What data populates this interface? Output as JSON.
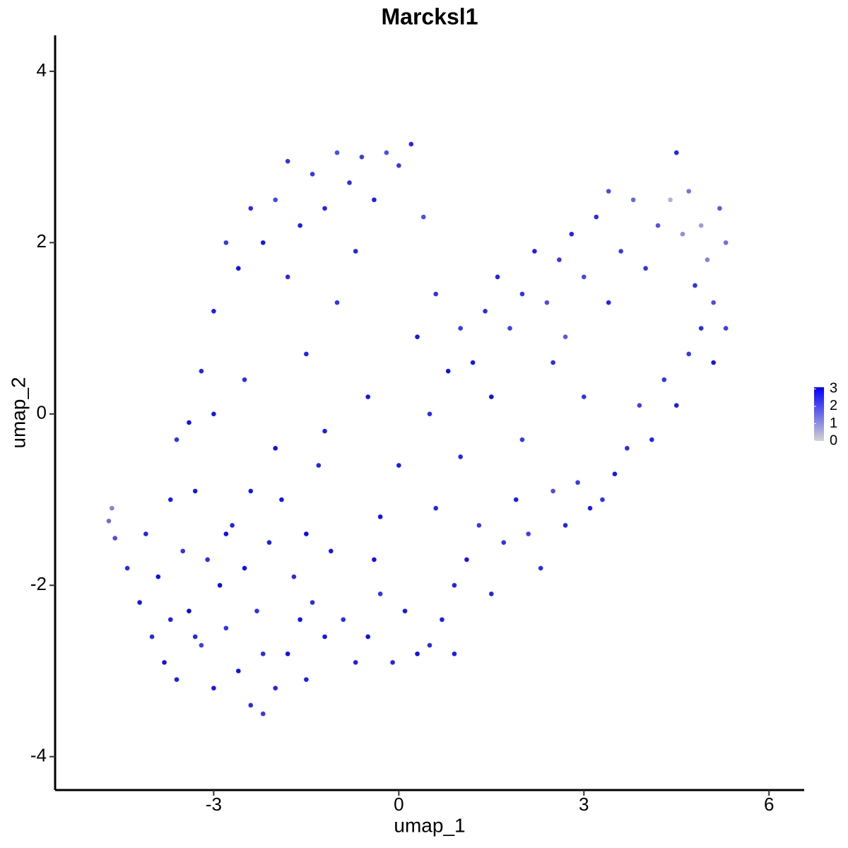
{
  "chart_data": {
    "type": "scatter",
    "title": "Marcksl1",
    "x_label": "umap_1",
    "y_label": "umap_2",
    "xlim": [
      -5.57,
      6.57
    ],
    "ylim": [
      -4.39,
      4.42
    ],
    "xticks": [
      -3,
      0,
      3,
      6
    ],
    "yticks": [
      -4,
      -2,
      0,
      2,
      4
    ],
    "color_low": "#d3d3d3",
    "color_high": "#0000ff",
    "color_lim": [
      0,
      3.1
    ],
    "color_ticks": [
      0,
      1,
      2,
      3
    ],
    "x": [
      -4.7,
      -4.65,
      -4.6,
      -4.4,
      -4.2,
      -4.0,
      -3.8,
      -3.6,
      -3.4,
      -3.2,
      -3.0,
      -2.8,
      -2.6,
      -2.4,
      -2.2,
      -2.0,
      -1.8,
      -1.5,
      -1.4,
      -1.2,
      -4.1,
      -3.9,
      -3.7,
      -3.5,
      -3.3,
      -3.1,
      -2.9,
      -2.7,
      -2.5,
      -2.3,
      -2.1,
      -1.9,
      -1.7,
      -1.5,
      -1.3,
      -1.1,
      -0.9,
      -0.7,
      -0.5,
      -0.3,
      -0.1,
      0.1,
      0.3,
      0.5,
      0.7,
      0.9,
      1.1,
      1.3,
      1.5,
      1.7,
      1.9,
      2.1,
      2.3,
      2.5,
      2.7,
      2.9,
      3.1,
      3.3,
      3.5,
      3.7,
      3.9,
      4.1,
      4.3,
      4.5,
      4.7,
      4.9,
      5.1,
      5.3,
      5.3,
      5.2,
      5.0,
      4.9,
      4.7,
      4.5,
      4.4,
      4.2,
      4.0,
      3.8,
      3.6,
      3.4,
      3.2,
      3.0,
      2.8,
      2.6,
      2.4,
      2.2,
      2.0,
      1.8,
      1.6,
      1.4,
      1.2,
      1.0,
      0.8,
      0.6,
      0.4,
      0.2,
      0.0,
      -0.2,
      -0.4,
      -0.6,
      -0.8,
      -1.0,
      -1.2,
      -1.4,
      -1.6,
      -1.8,
      -2.0,
      -2.2,
      -2.4,
      -2.6,
      -2.8,
      -3.0,
      -3.2,
      -3.4,
      -3.6,
      -3.7,
      -3.0,
      -2.5,
      -2.0,
      -1.5,
      -1.0,
      -0.5,
      0.0,
      0.5,
      1.0,
      1.5,
      2.0,
      2.5,
      3.0,
      -1.2,
      -0.3,
      0.6,
      -2.4,
      -1.8,
      -0.7,
      0.3,
      -2.8,
      -3.3,
      -2.2,
      -0.4,
      0.9,
      -1.6,
      4.8,
      4.6,
      5.1,
      2.7,
      3.4
    ],
    "y": [
      -1.25,
      -1.1,
      -1.45,
      -1.8,
      -2.2,
      -2.6,
      -2.9,
      -3.1,
      -2.3,
      -2.7,
      -3.2,
      -2.5,
      -3.0,
      -3.4,
      -3.5,
      -3.2,
      -2.8,
      -3.1,
      -2.2,
      -2.6,
      -1.4,
      -1.9,
      -2.4,
      -1.6,
      -0.9,
      -1.7,
      -2.0,
      -1.3,
      -1.8,
      -2.3,
      -1.5,
      -1.0,
      -1.9,
      -1.4,
      -0.6,
      -1.6,
      -2.4,
      -2.9,
      -2.6,
      -2.1,
      -2.9,
      -2.3,
      -2.8,
      -2.7,
      -2.4,
      -2.0,
      -1.7,
      -1.3,
      -2.1,
      -1.5,
      -1.0,
      -1.4,
      -1.8,
      -0.9,
      -1.3,
      -0.8,
      -1.1,
      -1.0,
      -0.7,
      -0.4,
      0.1,
      -0.3,
      0.4,
      0.1,
      0.7,
      1.0,
      0.6,
      1.0,
      2.0,
      2.4,
      1.8,
      2.2,
      2.6,
      3.05,
      2.5,
      2.2,
      1.7,
      2.5,
      1.9,
      2.6,
      2.3,
      1.6,
      2.1,
      1.8,
      1.3,
      1.9,
      1.4,
      1.0,
      1.6,
      1.2,
      0.6,
      1.0,
      0.5,
      1.4,
      2.3,
      3.15,
      2.9,
      3.05,
      2.5,
      3.0,
      2.7,
      3.05,
      2.4,
      2.8,
      2.2,
      2.95,
      2.5,
      2.0,
      2.4,
      1.7,
      2.0,
      1.2,
      0.5,
      -0.1,
      -0.3,
      -1.0,
      0.0,
      0.4,
      -0.4,
      0.7,
      1.3,
      0.2,
      -0.6,
      0.0,
      -0.5,
      0.2,
      -0.3,
      0.6,
      0.2,
      -0.2,
      -1.2,
      -1.1,
      -0.9,
      1.6,
      1.9,
      0.9,
      -1.4,
      -2.6,
      -2.8,
      -1.7,
      -2.8,
      -2.4,
      1.5,
      2.1,
      1.3,
      0.9,
      1.3
    ],
    "values": [
      1.5,
      1.2,
      2.0,
      2.5,
      2.8,
      2.5,
      2.9,
      2.7,
      3.0,
      2.2,
      2.8,
      2.4,
      2.9,
      2.5,
      2.3,
      2.6,
      2.9,
      2.7,
      2.5,
      2.8,
      2.6,
      2.9,
      2.7,
      2.4,
      2.8,
      2.5,
      3.0,
      2.6,
      2.9,
      2.4,
      2.7,
      2.8,
      2.5,
      3.0,
      2.6,
      2.8,
      2.5,
      2.7,
      2.9,
      2.4,
      2.6,
      2.8,
      2.9,
      2.5,
      2.7,
      2.6,
      2.8,
      2.3,
      2.6,
      2.4,
      2.7,
      2.2,
      2.5,
      2.0,
      2.6,
      2.3,
      2.7,
      2.4,
      2.8,
      2.5,
      2.2,
      2.6,
      2.4,
      2.7,
      2.3,
      2.5,
      2.8,
      2.2,
      1.5,
      1.8,
      1.2,
      0.8,
      1.4,
      2.6,
      0.5,
      1.9,
      2.4,
      1.6,
      2.3,
      2.0,
      2.5,
      2.1,
      2.6,
      2.3,
      2.0,
      2.7,
      2.4,
      2.2,
      2.6,
      2.5,
      2.8,
      2.3,
      2.9,
      2.4,
      2.0,
      2.6,
      2.3,
      2.0,
      2.7,
      2.2,
      2.5,
      2.0,
      2.6,
      2.3,
      2.7,
      2.4,
      2.1,
      2.8,
      2.5,
      2.9,
      2.3,
      2.7,
      2.6,
      2.9,
      2.4,
      2.7,
      2.8,
      2.5,
      2.9,
      2.6,
      2.4,
      2.8,
      2.7,
      2.5,
      2.6,
      2.9,
      2.3,
      2.5,
      2.4,
      2.7,
      2.9,
      2.6,
      2.8,
      2.5,
      2.6,
      2.8,
      2.9,
      2.6,
      2.5,
      2.9,
      2.7,
      2.9,
      2.4,
      1.0,
      2.0,
      1.8,
      2.6
    ]
  }
}
